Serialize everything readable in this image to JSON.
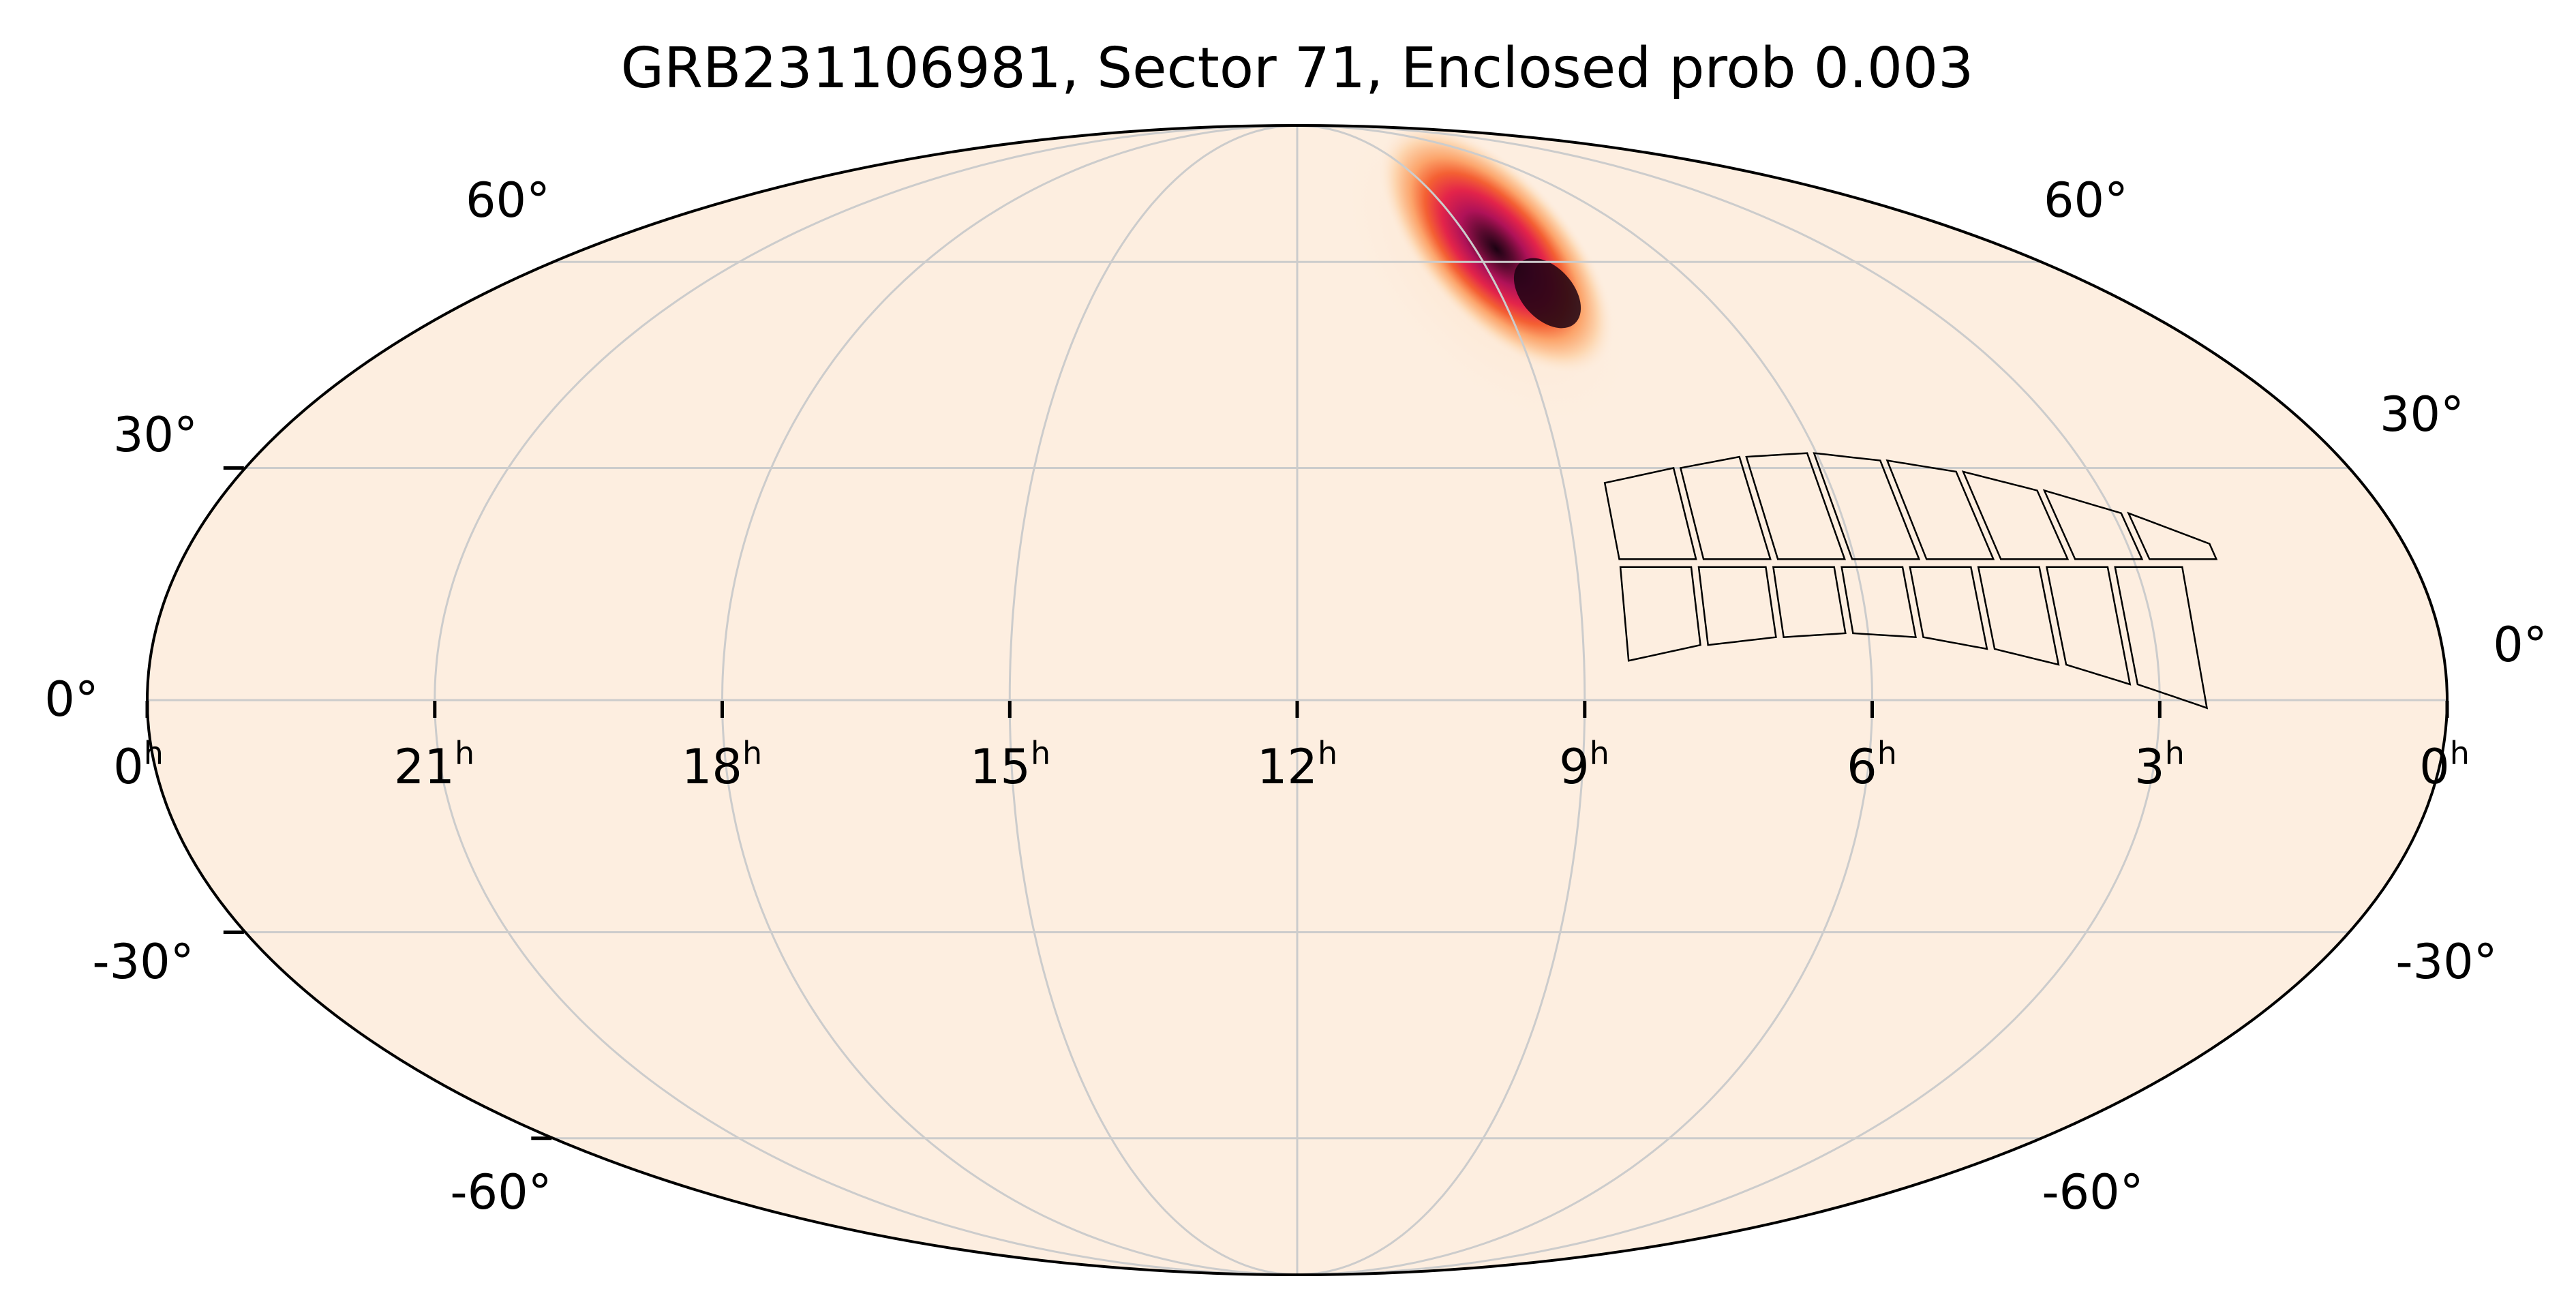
{
  "map": {
    "title": "GRB231106981, Sector 71, Enclosed prob 0.003",
    "projection": "mollweide",
    "ra_direction": "increasing-to-the-left",
    "background_color": "#fdeee0",
    "grid_color": "#cccccc",
    "outline_color": "#000000",
    "colormap": [
      "#fdeee0",
      "#fdd7b2",
      "#fca46b",
      "#f46033",
      "#e3244a",
      "#b01258",
      "#5a0a2f",
      "#1b0212"
    ],
    "ra_ticks": [
      {
        "ra_deg": 360,
        "label": "0",
        "unit": "h"
      },
      {
        "ra_deg": 315,
        "label": "21",
        "unit": "h"
      },
      {
        "ra_deg": 270,
        "label": "18",
        "unit": "h"
      },
      {
        "ra_deg": 225,
        "label": "15",
        "unit": "h"
      },
      {
        "ra_deg": 180,
        "label": "12",
        "unit": "h"
      },
      {
        "ra_deg": 135,
        "label": "9",
        "unit": "h"
      },
      {
        "ra_deg": 90,
        "label": "6",
        "unit": "h"
      },
      {
        "ra_deg": 45,
        "label": "3",
        "unit": "h"
      },
      {
        "ra_deg": 0,
        "label": "0",
        "unit": "h"
      }
    ],
    "dec_ticks": [
      {
        "dec_deg": 60,
        "label": "60°"
      },
      {
        "dec_deg": 30,
        "label": "30°"
      },
      {
        "dec_deg": 0,
        "label": "0°"
      },
      {
        "dec_deg": -30,
        "label": "-30°"
      },
      {
        "dec_deg": -60,
        "label": "-60°"
      }
    ],
    "probability_blob": {
      "peak_ra_deg": 140,
      "peak_dec_deg": 52,
      "extent": "elongated from about RA 160°, Dec 78° to RA 133°, Dec 47°"
    },
    "sector_footprint": {
      "rows": 2,
      "columns": 8,
      "rows_data": [
        {
          "name": "upper row",
          "ccd_edges_ra_deg": [
            128,
            115,
            103,
            91,
            79,
            67,
            55,
            43,
            31
          ],
          "bottom_dec_deg": 18,
          "top_dec_deg": [
            28,
            30,
            31.5,
            32,
            31,
            29.5,
            27,
            24,
            20
          ]
        },
        {
          "name": "lower row",
          "ccd_edges_ra_deg": [
            128,
            116,
            104,
            93,
            82,
            71,
            60,
            49,
            37
          ],
          "bottom_dec_deg": [
            5,
            7,
            8,
            8.5,
            8,
            6.5,
            4.5,
            2,
            -1
          ],
          "top_dec_deg": 17
        }
      ]
    }
  }
}
